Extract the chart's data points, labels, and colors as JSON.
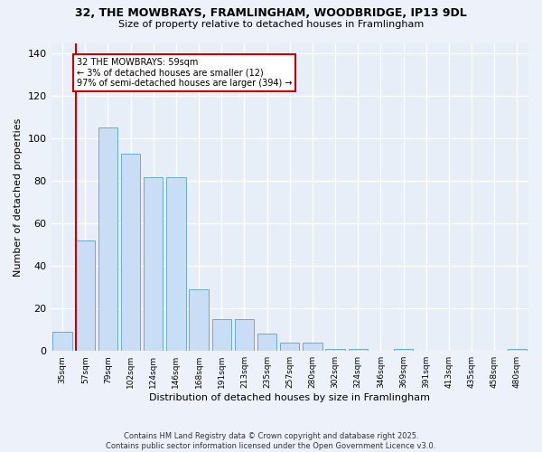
{
  "title_line1": "32, THE MOWBRAYS, FRAMLINGHAM, WOODBRIDGE, IP13 9DL",
  "title_line2": "Size of property relative to detached houses in Framlingham",
  "xlabel": "Distribution of detached houses by size in Framlingham",
  "ylabel": "Number of detached properties",
  "categories": [
    "35sqm",
    "57sqm",
    "79sqm",
    "102sqm",
    "124sqm",
    "146sqm",
    "168sqm",
    "191sqm",
    "213sqm",
    "235sqm",
    "257sqm",
    "280sqm",
    "302sqm",
    "324sqm",
    "346sqm",
    "369sqm",
    "391sqm",
    "413sqm",
    "435sqm",
    "458sqm",
    "480sqm"
  ],
  "values": [
    9,
    52,
    105,
    93,
    82,
    82,
    29,
    15,
    15,
    8,
    4,
    4,
    1,
    1,
    0,
    1,
    0,
    0,
    0,
    0,
    1
  ],
  "bar_color": "#c9ddf5",
  "bar_edge_color": "#6aaad4",
  "redline_index": 1,
  "annotation_text_line1": "32 THE MOWBRAYS: 59sqm",
  "annotation_text_line2": "← 3% of detached houses are smaller (12)",
  "annotation_text_line3": "97% of semi-detached houses are larger (394) →",
  "annotation_box_facecolor": "#ffffff",
  "annotation_box_edgecolor": "#cc0000",
  "redline_color": "#cc0000",
  "ylim": [
    0,
    145
  ],
  "yticks": [
    0,
    20,
    40,
    60,
    80,
    100,
    120,
    140
  ],
  "plot_bg_color": "#e8eef8",
  "fig_bg_color": "#edf2fa",
  "grid_color": "#ffffff",
  "footer_line1": "Contains HM Land Registry data © Crown copyright and database right 2025.",
  "footer_line2": "Contains public sector information licensed under the Open Government Licence v3.0."
}
